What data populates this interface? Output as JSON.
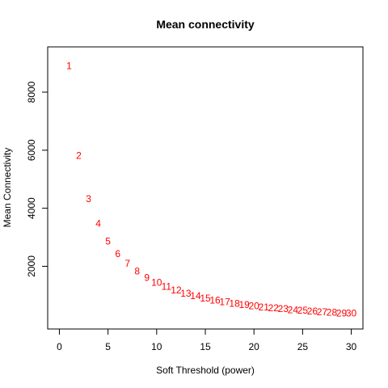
{
  "chart_data": {
    "type": "scatter",
    "title": "Mean connectivity",
    "xlabel": "Soft Threshold (power)",
    "ylabel": "Mean Connectivity",
    "xlim": [
      0,
      30
    ],
    "ylim": [
      200,
      9200
    ],
    "x_ticks": [
      0,
      5,
      10,
      15,
      20,
      25,
      30
    ],
    "y_ticks": [
      2000,
      4000,
      6000,
      8000
    ],
    "marker": "text-labels",
    "point_color": "#ff0000",
    "grid": false,
    "points": [
      {
        "label": "1",
        "x": 1,
        "y": 8900
      },
      {
        "label": "2",
        "x": 2,
        "y": 5820
      },
      {
        "label": "3",
        "x": 3,
        "y": 4330
      },
      {
        "label": "4",
        "x": 4,
        "y": 3470
      },
      {
        "label": "5",
        "x": 5,
        "y": 2860
      },
      {
        "label": "6",
        "x": 6,
        "y": 2430
      },
      {
        "label": "7",
        "x": 7,
        "y": 2100
      },
      {
        "label": "8",
        "x": 8,
        "y": 1830
      },
      {
        "label": "9",
        "x": 9,
        "y": 1610
      },
      {
        "label": "10",
        "x": 10,
        "y": 1440
      },
      {
        "label": "11",
        "x": 11,
        "y": 1300
      },
      {
        "label": "12",
        "x": 12,
        "y": 1180
      },
      {
        "label": "13",
        "x": 13,
        "y": 1070
      },
      {
        "label": "14",
        "x": 14,
        "y": 980
      },
      {
        "label": "15",
        "x": 15,
        "y": 900
      },
      {
        "label": "16",
        "x": 16,
        "y": 830
      },
      {
        "label": "17",
        "x": 17,
        "y": 770
      },
      {
        "label": "18",
        "x": 18,
        "y": 720
      },
      {
        "label": "19",
        "x": 19,
        "y": 670
      },
      {
        "label": "20",
        "x": 20,
        "y": 630
      },
      {
        "label": "21",
        "x": 21,
        "y": 590
      },
      {
        "label": "22",
        "x": 22,
        "y": 560
      },
      {
        "label": "23",
        "x": 23,
        "y": 530
      },
      {
        "label": "24",
        "x": 24,
        "y": 500
      },
      {
        "label": "25",
        "x": 25,
        "y": 480
      },
      {
        "label": "26",
        "x": 26,
        "y": 450
      },
      {
        "label": "27",
        "x": 27,
        "y": 430
      },
      {
        "label": "28",
        "x": 28,
        "y": 410
      },
      {
        "label": "29",
        "x": 29,
        "y": 390
      },
      {
        "label": "30",
        "x": 30,
        "y": 380
      }
    ]
  }
}
